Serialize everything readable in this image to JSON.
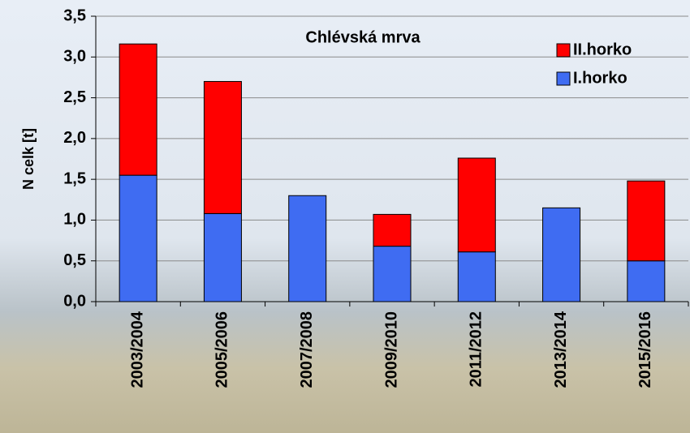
{
  "chart_data": {
    "type": "stacked_bar",
    "title": "Chlévská mrva",
    "y_label": "N celk  [t]",
    "categories": [
      "2003/2004",
      "2005/2006",
      "2007/2008",
      "2009/2010",
      "2011/2012",
      "2013/2014",
      "2015/2016"
    ],
    "series": [
      {
        "name": "I.horko",
        "color": "#3f6cf2",
        "values": [
          1.55,
          1.08,
          1.3,
          0.68,
          0.61,
          1.15,
          0.5
        ]
      },
      {
        "name": "II.horko",
        "color": "#ff0000",
        "values": [
          1.61,
          1.62,
          0,
          0.39,
          1.15,
          0,
          0.98
        ]
      }
    ],
    "ylim": [
      0,
      3.5
    ],
    "yticks": [
      {
        "value": 0,
        "label": "0,0"
      },
      {
        "value": 0.5,
        "label": "0,5"
      },
      {
        "value": 1,
        "label": "1,0"
      },
      {
        "value": 1.5,
        "label": "1,5"
      },
      {
        "value": 2,
        "label": "2,0"
      },
      {
        "value": 2.5,
        "label": "2,5"
      },
      {
        "value": 3,
        "label": "3,0"
      },
      {
        "value": 3.5,
        "label": "3,5"
      }
    ],
    "grid": true,
    "legend": "upper right"
  }
}
